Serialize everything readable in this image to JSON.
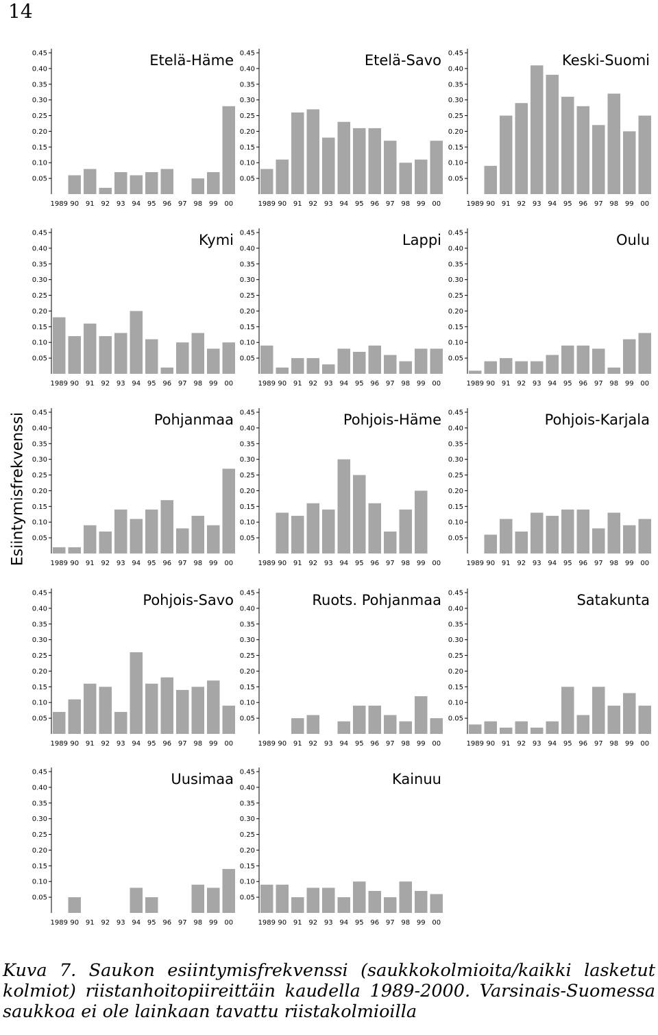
{
  "page_number": "14",
  "ylabel": "Esiintymisfrekvenssi",
  "caption": "Kuva 7. Saukon esiintymisfrekvenssi (saukkokolmioita/kaikki lasketut kolmiot) riistanhoitopiireittäin kaudella 1989-2000. Varsinais-Suomessa saukkoa ei ole lainkaan tavattu riistakolmioilla",
  "chart_data": {
    "type": "bar",
    "panel_count": 14,
    "categories": [
      "1989",
      "90",
      "91",
      "92",
      "93",
      "94",
      "95",
      "96",
      "97",
      "98",
      "99",
      "00"
    ],
    "yticks": [
      "0.05",
      "0.10",
      "0.15",
      "0.20",
      "0.25",
      "0.30",
      "0.35",
      "0.40",
      "0.45"
    ],
    "ylim": [
      0,
      0.45
    ],
    "bar_color": "#a6a6a6",
    "grid": false,
    "panels": [
      {
        "title": "Etelä-Häme",
        "values": [
          0,
          0.06,
          0.08,
          0.02,
          0.07,
          0.06,
          0.07,
          0.08,
          0,
          0.05,
          0.07,
          0.28
        ]
      },
      {
        "title": "Etelä-Savo",
        "values": [
          0.08,
          0.11,
          0.26,
          0.27,
          0.18,
          0.23,
          0.21,
          0.21,
          0.17,
          0.1,
          0.11,
          0.17
        ]
      },
      {
        "title": "Keski-Suomi",
        "values": [
          0,
          0.09,
          0.25,
          0.29,
          0.41,
          0.38,
          0.31,
          0.28,
          0.22,
          0.32,
          0.2,
          0.25
        ]
      },
      {
        "title": "Kymi",
        "values": [
          0.18,
          0.12,
          0.16,
          0.12,
          0.13,
          0.2,
          0.11,
          0.02,
          0.1,
          0.13,
          0.08,
          0.1
        ]
      },
      {
        "title": "Lappi",
        "values": [
          0.09,
          0.02,
          0.05,
          0.05,
          0.03,
          0.08,
          0.07,
          0.09,
          0.06,
          0.04,
          0.08,
          0.08
        ]
      },
      {
        "title": "Oulu",
        "values": [
          0.01,
          0.04,
          0.05,
          0.04,
          0.04,
          0.06,
          0.09,
          0.09,
          0.08,
          0.02,
          0.11,
          0.13
        ]
      },
      {
        "title": "Pohjanmaa",
        "values": [
          0.02,
          0.02,
          0.09,
          0.07,
          0.14,
          0.11,
          0.14,
          0.17,
          0.08,
          0.12,
          0.09,
          0.27
        ]
      },
      {
        "title": "Pohjois-Häme",
        "values": [
          0,
          0.13,
          0.12,
          0.16,
          0.14,
          0.3,
          0.25,
          0.16,
          0.07,
          0.14,
          0.2,
          0
        ]
      },
      {
        "title": "Pohjois-Karjala",
        "values": [
          0,
          0.06,
          0.11,
          0.07,
          0.13,
          0.12,
          0.14,
          0.14,
          0.08,
          0.13,
          0.09,
          0.11
        ]
      },
      {
        "title": "Pohjois-Savo",
        "values": [
          0.07,
          0.11,
          0.16,
          0.15,
          0.07,
          0.26,
          0.16,
          0.18,
          0.14,
          0.15,
          0.17,
          0.09
        ]
      },
      {
        "title": "Ruots. Pohjanmaa",
        "values": [
          0,
          0,
          0.05,
          0.06,
          0,
          0.04,
          0.09,
          0.09,
          0.06,
          0.04,
          0.12,
          0.05
        ]
      },
      {
        "title": "Satakunta",
        "values": [
          0.03,
          0.04,
          0.02,
          0.04,
          0.02,
          0.04,
          0.15,
          0.06,
          0.15,
          0.09,
          0.13,
          0.09
        ]
      },
      {
        "title": "Uusimaa",
        "values": [
          0,
          0.05,
          0,
          0,
          0,
          0.08,
          0.05,
          0,
          0,
          0.09,
          0.08,
          0.14
        ]
      },
      {
        "title": "Kainuu",
        "values": [
          0.09,
          0.09,
          0.05,
          0.08,
          0.08,
          0.05,
          0.1,
          0.07,
          0.05,
          0.1,
          0.07,
          0.06
        ]
      }
    ]
  }
}
